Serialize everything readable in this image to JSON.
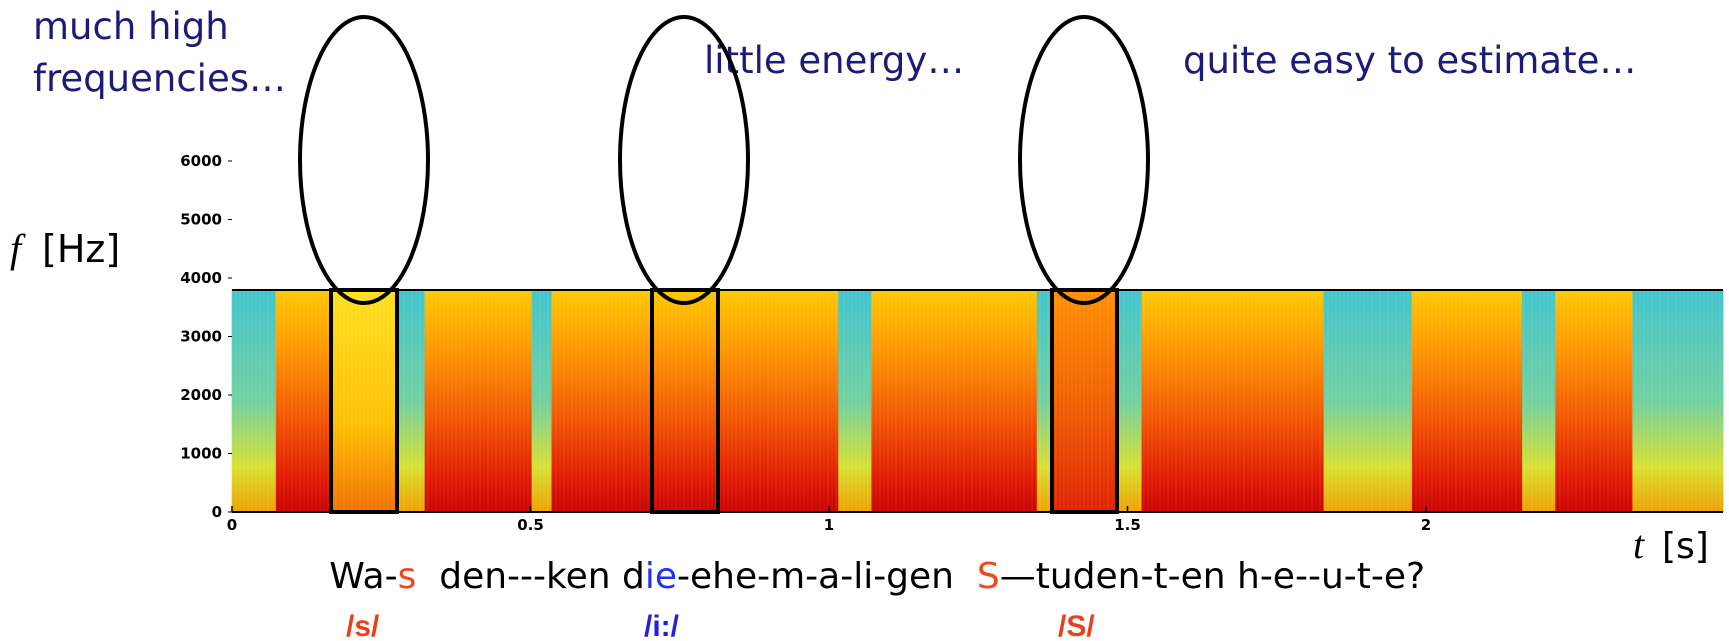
{
  "annotations": {
    "high_freq": [
      "much high",
      "frequencies…"
    ],
    "little_energy": "little energy…",
    "easy": "quite easy to estimate…"
  },
  "axes": {
    "y_symbol": "f",
    "y_unit": "[Hz]",
    "x_symbol": "t",
    "x_unit": "[s]",
    "yticks": [
      0,
      1000,
      2000,
      3000,
      4000,
      5000,
      6000
    ],
    "xticks": [
      0,
      0.5,
      1,
      1.5,
      2
    ]
  },
  "sentence": [
    "Wa-",
    "s",
    "  den---ken d",
    "ie",
    "-ehe-m-a-li-gen  ",
    "S",
    "—tuden-t-en h-e--u-t-e?"
  ],
  "phonemes": [
    "/s/",
    "/i:/",
    "/S/"
  ]
}
